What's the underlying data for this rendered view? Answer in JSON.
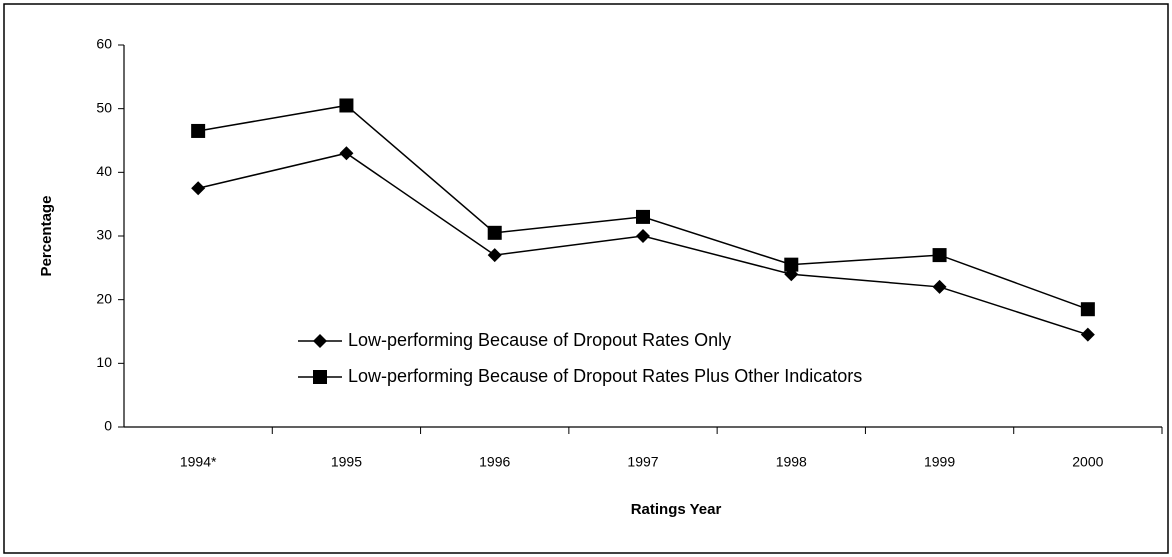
{
  "chart_data": {
    "type": "line",
    "categories": [
      "1994*",
      "1995",
      "1996",
      "1997",
      "1998",
      "1999",
      "2000"
    ],
    "series": [
      {
        "name": "Low-performing Because of Dropout Rates Only",
        "color": "#000000",
        "marker": "diamond",
        "values": [
          37.5,
          43,
          27,
          30,
          24,
          22,
          14.5
        ]
      },
      {
        "name": "Low-performing Because of Dropout Rates Plus Other Indicators",
        "color": "#000000",
        "marker": "square",
        "values": [
          46.5,
          50.5,
          30.5,
          33,
          25.5,
          27,
          18.5
        ]
      }
    ],
    "ylabel": "Percentage",
    "xlabel": "Ratings Year",
    "ylim": [
      0,
      60
    ],
    "yticks": [
      0,
      10,
      20,
      30,
      40,
      50,
      60
    ],
    "grid": false
  }
}
